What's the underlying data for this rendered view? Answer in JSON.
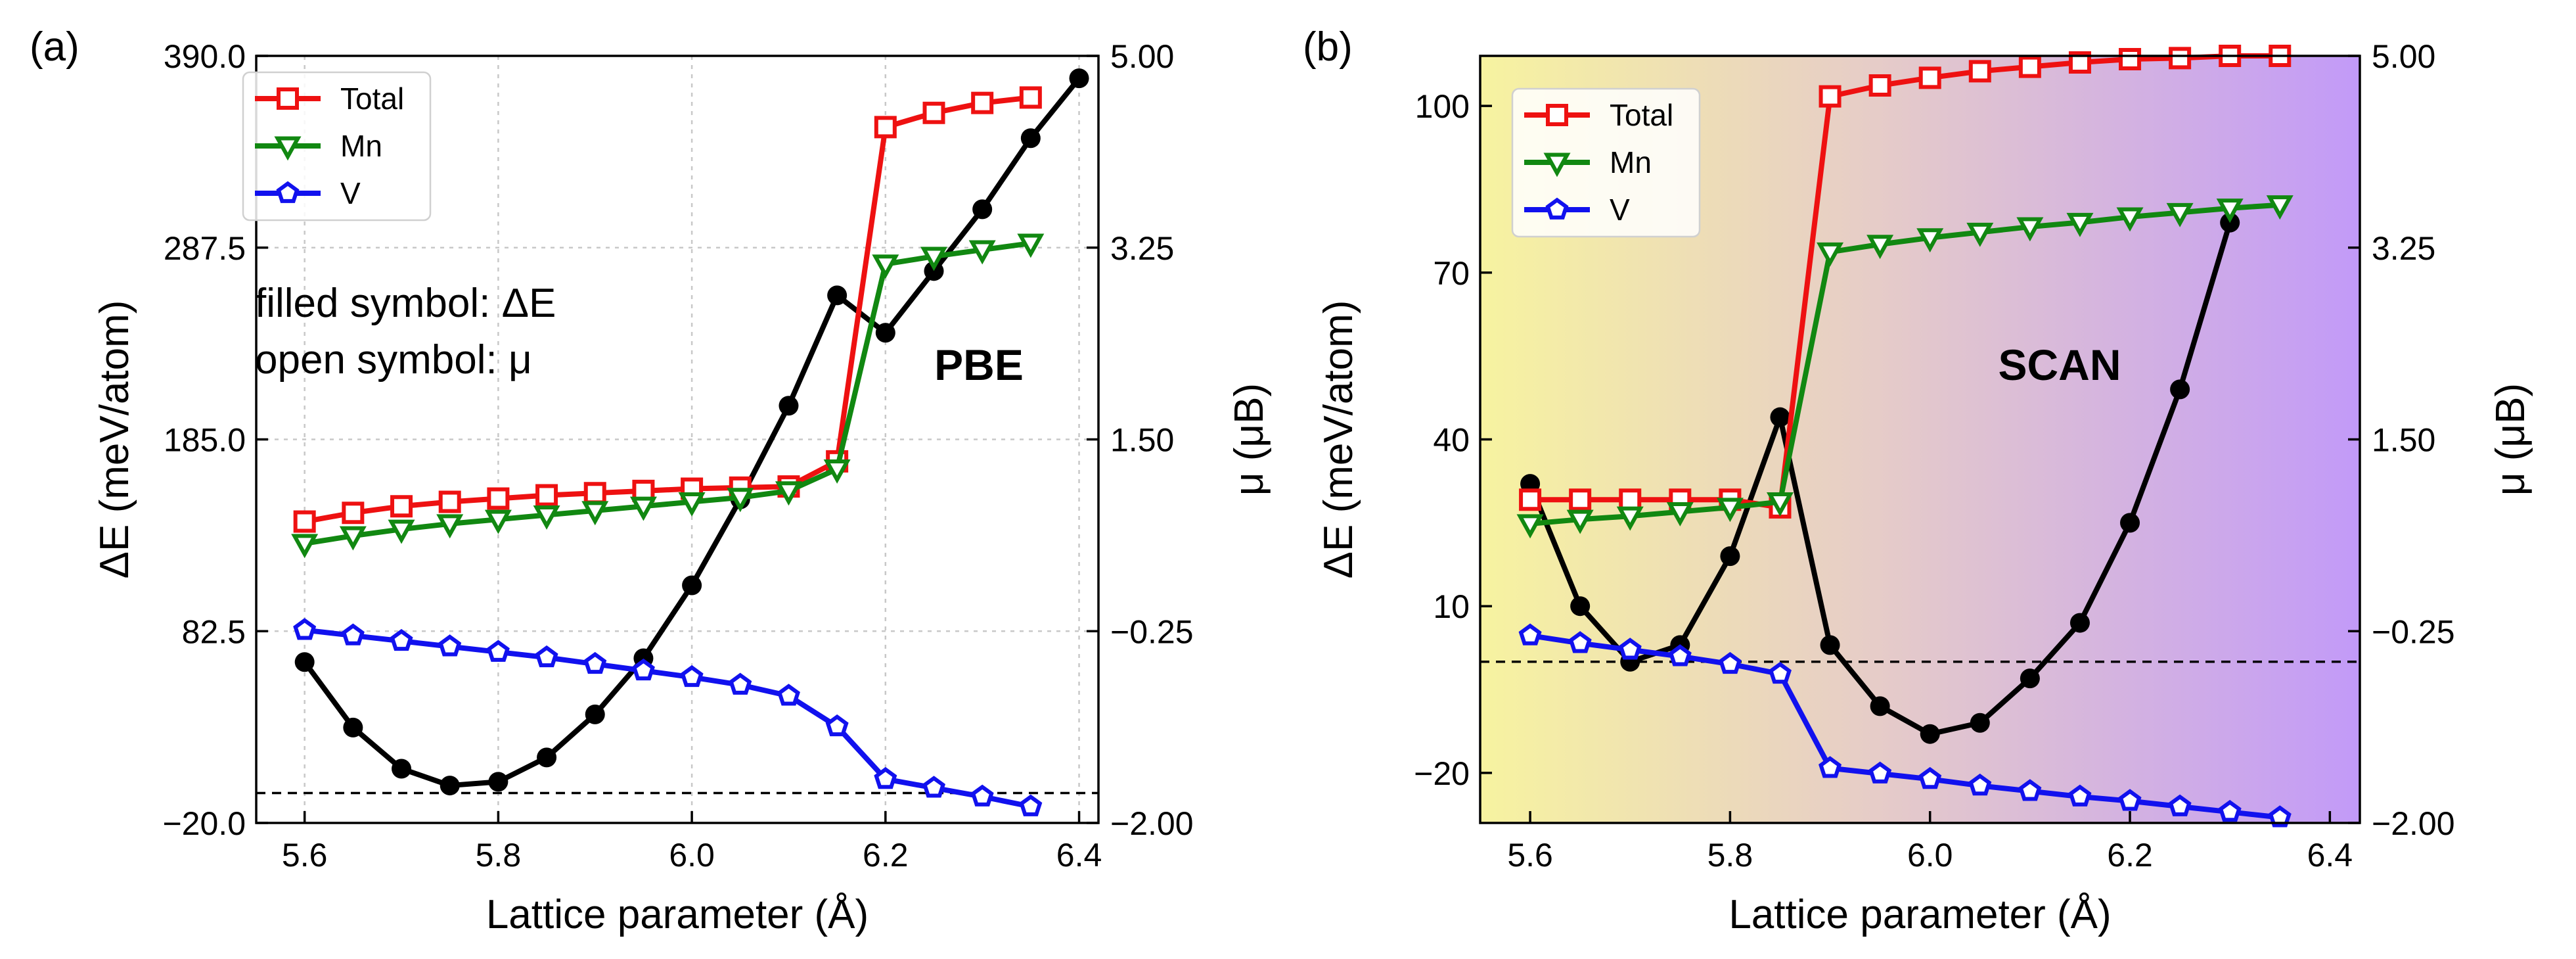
{
  "chart_data": [
    {
      "type": "line",
      "panel_label": "(a)",
      "method_label": "PBE",
      "note_lines": [
        "filled symbol: ΔE",
        "open symbol: μ"
      ],
      "xlabel": "Lattice parameter (Å)",
      "ylabel_left": "ΔE (meV/atom)",
      "ylabel_right": "μ (μB)",
      "xlim": [
        5.55,
        6.42
      ],
      "x_ticks": [
        5.6,
        5.8,
        6.0,
        6.2,
        6.4
      ],
      "x_tick_labels": [
        "5.6",
        "5.8",
        "6.0",
        "6.2",
        "6.4"
      ],
      "ylim_left": [
        -20,
        390
      ],
      "y_ticks_left": [
        -20,
        82.5,
        185,
        287.5,
        390
      ],
      "y_tick_labels_left": [
        "−20.0",
        "82.5",
        "185.0",
        "287.5",
        "390.0"
      ],
      "ylim_right": [
        -2.0,
        5.0
      ],
      "y_ticks_right": [
        -2.0,
        -0.25,
        1.5,
        3.25,
        5.0
      ],
      "y_tick_labels_right": [
        "−2.00",
        "−0.25",
        "1.50",
        "3.25",
        "5.00"
      ],
      "grid": true,
      "background": "#ffffff",
      "hline_left": -4,
      "legend_position": "top-left",
      "energy": {
        "name": "ΔE",
        "color": "#000000",
        "x": [
          5.6,
          5.65,
          5.7,
          5.75,
          5.8,
          5.85,
          5.9,
          5.95,
          6.0,
          6.05,
          6.1,
          6.15,
          6.2,
          6.25,
          6.3,
          6.35,
          6.4
        ],
        "values": [
          66,
          31,
          9,
          0,
          2,
          15,
          38,
          68,
          107,
          153,
          203,
          262,
          242,
          275,
          308,
          346,
          378
        ]
      },
      "series": [
        {
          "name": "Total",
          "color": "#ee1111",
          "marker": "square",
          "x": [
            5.6,
            5.65,
            5.7,
            5.75,
            5.8,
            5.85,
            5.9,
            5.95,
            6.0,
            6.05,
            6.1,
            6.15,
            6.2,
            6.25,
            6.3,
            6.35
          ],
          "values": [
            0.75,
            0.83,
            0.89,
            0.93,
            0.96,
            0.99,
            1.01,
            1.03,
            1.05,
            1.06,
            1.07,
            1.3,
            4.35,
            4.48,
            4.57,
            4.62
          ]
        },
        {
          "name": "Mn",
          "color": "#118811",
          "marker": "triangle-down",
          "x": [
            5.6,
            5.65,
            5.7,
            5.75,
            5.8,
            5.85,
            5.9,
            5.95,
            6.0,
            6.05,
            6.1,
            6.15,
            6.2,
            6.25,
            6.3,
            6.35
          ],
          "values": [
            0.55,
            0.62,
            0.68,
            0.73,
            0.77,
            0.81,
            0.85,
            0.89,
            0.93,
            0.97,
            1.03,
            1.23,
            3.1,
            3.17,
            3.23,
            3.29
          ]
        },
        {
          "name": "V",
          "color": "#1111ee",
          "marker": "pentagon",
          "x": [
            5.6,
            5.65,
            5.7,
            5.75,
            5.8,
            5.85,
            5.9,
            5.95,
            6.0,
            6.05,
            6.1,
            6.15,
            6.2,
            6.25,
            6.3,
            6.35
          ],
          "values": [
            -0.24,
            -0.29,
            -0.34,
            -0.39,
            -0.44,
            -0.49,
            -0.55,
            -0.61,
            -0.67,
            -0.74,
            -0.84,
            -1.12,
            -1.6,
            -1.68,
            -1.76,
            -1.85
          ]
        }
      ]
    },
    {
      "type": "line",
      "panel_label": "(b)",
      "method_label": "SCAN",
      "xlabel": "Lattice parameter (Å)",
      "ylabel_left": "ΔE (meV/atom)",
      "ylabel_right": "μ (μB)",
      "xlim": [
        5.55,
        6.43
      ],
      "x_ticks": [
        5.6,
        5.8,
        6.0,
        6.2,
        6.4
      ],
      "x_tick_labels": [
        "5.6",
        "5.8",
        "6.0",
        "6.2",
        "6.4"
      ],
      "ylim_left": [
        -29,
        109
      ],
      "y_ticks_left": [
        -20,
        10,
        40,
        70,
        100
      ],
      "y_tick_labels_left": [
        "−20",
        "10",
        "40",
        "70",
        "100"
      ],
      "ylim_right": [
        -2.0,
        5.0
      ],
      "y_ticks_right": [
        -2.0,
        -0.25,
        1.5,
        3.25,
        5.0
      ],
      "y_tick_labels_right": [
        "−2.00",
        "−0.25",
        "1.50",
        "3.25",
        "5.00"
      ],
      "grid": false,
      "background_gradient": [
        "#f7f3a0",
        "#e6ccc8",
        "#c29af8"
      ],
      "hline_left": 0,
      "legend_position": "top-left",
      "energy": {
        "name": "ΔE",
        "color": "#000000",
        "x": [
          5.6,
          5.65,
          5.7,
          5.75,
          5.8,
          5.85,
          5.9,
          5.95,
          6.0,
          6.05,
          6.1,
          6.15,
          6.2,
          6.25,
          6.3
        ],
        "values": [
          32,
          10,
          0,
          3,
          19,
          44,
          3,
          -8,
          -13,
          -11,
          -3,
          7,
          25,
          49,
          79
        ]
      },
      "series": [
        {
          "name": "Total",
          "color": "#ee1111",
          "marker": "square",
          "x": [
            5.6,
            5.65,
            5.7,
            5.75,
            5.8,
            5.85,
            5.9,
            5.95,
            6.0,
            6.05,
            6.1,
            6.15,
            6.2,
            6.25,
            6.3,
            6.35
          ],
          "values": [
            0.95,
            0.95,
            0.95,
            0.95,
            0.95,
            0.88,
            4.63,
            4.73,
            4.8,
            4.86,
            4.9,
            4.94,
            4.97,
            4.98,
            5.0,
            5.0
          ]
        },
        {
          "name": "Mn",
          "color": "#118811",
          "marker": "triangle-down",
          "x": [
            5.6,
            5.65,
            5.7,
            5.75,
            5.8,
            5.85,
            5.9,
            5.95,
            6.0,
            6.05,
            6.1,
            6.15,
            6.2,
            6.25,
            6.3,
            6.35
          ],
          "values": [
            0.73,
            0.77,
            0.8,
            0.84,
            0.88,
            0.93,
            3.21,
            3.28,
            3.34,
            3.39,
            3.44,
            3.48,
            3.53,
            3.57,
            3.61,
            3.64
          ]
        },
        {
          "name": "V",
          "color": "#1111ee",
          "marker": "pentagon",
          "x": [
            5.6,
            5.65,
            5.7,
            5.75,
            5.8,
            5.85,
            5.9,
            5.95,
            6.0,
            6.05,
            6.1,
            6.15,
            6.2,
            6.25,
            6.3,
            6.35
          ],
          "values": [
            -0.29,
            -0.36,
            -0.42,
            -0.48,
            -0.55,
            -0.64,
            -1.5,
            -1.55,
            -1.6,
            -1.66,
            -1.71,
            -1.76,
            -1.8,
            -1.85,
            -1.9,
            -1.95
          ]
        }
      ]
    }
  ]
}
